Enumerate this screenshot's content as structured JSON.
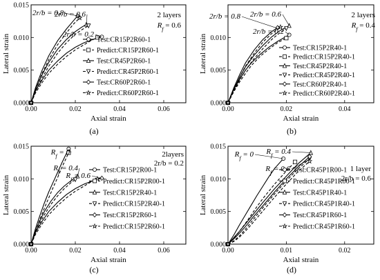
{
  "figure_width": 550,
  "figure_height": 406,
  "chart_data": [
    {
      "type": "line",
      "panel_label": "(a)",
      "xlabel": "Axial strain",
      "ylabel": "Lateral strain",
      "xlim": [
        0,
        0.07
      ],
      "ylim": [
        0,
        0.015
      ],
      "x_ticks": [
        "0.00",
        "0.02",
        "0.04",
        "0.06"
      ],
      "y_ticks": [
        "0.000",
        "0.005",
        "0.010",
        "0.015"
      ],
      "grid": false,
      "legend_position": "bottom-right",
      "notes": [
        "2 layers",
        "R_f = 0.6"
      ],
      "annotations": [
        {
          "text": "2r/b = 0.8",
          "x": 0.021,
          "y": 0.0133
        },
        {
          "text": "2r/b = 0.6",
          "x": 0.025,
          "y": 0.0118
        },
        {
          "text": "2r/b = 0.2",
          "x": 0.032,
          "y": 0.0101
        }
      ],
      "series": [
        {
          "name": "Test:CR15P2R60-1",
          "style": "solid",
          "marker": "circle",
          "x": [
            0,
            0.002,
            0.005,
            0.008,
            0.012,
            0.016,
            0.02,
            0.024,
            0.028,
            0.032
          ],
          "y": [
            0,
            0.0018,
            0.0035,
            0.005,
            0.0064,
            0.0076,
            0.0085,
            0.0092,
            0.0097,
            0.0101
          ]
        },
        {
          "name": "Predict:CR15P2R60-1",
          "style": "dashed",
          "marker": "square",
          "x": [
            0,
            0.002,
            0.005,
            0.008,
            0.012,
            0.016,
            0.02,
            0.024,
            0.027,
            0.03
          ],
          "y": [
            0,
            0.0015,
            0.0031,
            0.0045,
            0.0059,
            0.0071,
            0.0081,
            0.0089,
            0.0095,
            0.01
          ]
        },
        {
          "name": "Test:CR45P2R60-1",
          "style": "solid",
          "marker": "triangle-up",
          "x": [
            0,
            0.002,
            0.005,
            0.008,
            0.012,
            0.016,
            0.02,
            0.023,
            0.025
          ],
          "y": [
            0,
            0.002,
            0.0043,
            0.0062,
            0.0082,
            0.0097,
            0.0109,
            0.0116,
            0.012
          ]
        },
        {
          "name": "Predict:CR45P2R60-1",
          "style": "dashed",
          "marker": "triangle-down",
          "x": [
            0,
            0.002,
            0.005,
            0.008,
            0.012,
            0.016,
            0.02,
            0.023,
            0.026
          ],
          "y": [
            0,
            0.0017,
            0.0038,
            0.0056,
            0.0076,
            0.0092,
            0.0105,
            0.0112,
            0.0118
          ]
        },
        {
          "name": "Test:CR60P2R60-1",
          "style": "solid",
          "marker": "diamond",
          "x": [
            0,
            0.002,
            0.005,
            0.008,
            0.012,
            0.016,
            0.019,
            0.021
          ],
          "y": [
            0,
            0.0023,
            0.005,
            0.0072,
            0.0095,
            0.0113,
            0.0125,
            0.0133
          ]
        },
        {
          "name": "Predict:CR60P2R60-1",
          "style": "dashed",
          "marker": "star",
          "x": [
            0,
            0.002,
            0.005,
            0.008,
            0.012,
            0.016,
            0.019,
            0.022
          ],
          "y": [
            0,
            0.002,
            0.0045,
            0.0066,
            0.0089,
            0.0107,
            0.012,
            0.013
          ]
        }
      ]
    },
    {
      "type": "line",
      "panel_label": "(b)",
      "xlabel": "Axial strain",
      "ylabel": "Lateral strain",
      "xlim": [
        0,
        0.05
      ],
      "ylim": [
        0,
        0.015
      ],
      "x_ticks": [
        "0.00",
        "0.02",
        "0.04"
      ],
      "y_ticks": [
        "0.000",
        "0.005",
        "0.010"
      ],
      "grid": false,
      "legend_position": "bottom-right",
      "notes": [
        "2 layers",
        "R_f = 0.4"
      ],
      "annotations": [
        {
          "text": "2r/b = 0.8",
          "x": 0.017,
          "y": 0.0114
        },
        {
          "text": "2r/b = 0.6",
          "x": 0.021,
          "y": 0.0118
        },
        {
          "text": "2r/b = 0.2",
          "x": 0.021,
          "y": 0.0104
        }
      ],
      "series": [
        {
          "name": "Test:CR15P2R40-1",
          "style": "solid",
          "marker": "circle",
          "x": [
            0,
            0.002,
            0.004,
            0.006,
            0.008,
            0.011,
            0.014,
            0.017,
            0.019,
            0.021
          ],
          "y": [
            0,
            0.002,
            0.0036,
            0.005,
            0.0061,
            0.0074,
            0.0085,
            0.0094,
            0.0099,
            0.0104
          ]
        },
        {
          "name": "Predict:CR15P2R40-1",
          "style": "dashed",
          "marker": "square",
          "x": [
            0,
            0.002,
            0.004,
            0.006,
            0.008,
            0.011,
            0.014,
            0.017,
            0.02
          ],
          "y": [
            0,
            0.0017,
            0.0032,
            0.0045,
            0.0057,
            0.0071,
            0.0082,
            0.0092,
            0.0099
          ]
        },
        {
          "name": "Test:CR45P2R40-1",
          "style": "solid",
          "marker": "triangle-up",
          "x": [
            0,
            0.002,
            0.004,
            0.006,
            0.009,
            0.012,
            0.015,
            0.018,
            0.021
          ],
          "y": [
            0,
            0.0021,
            0.0039,
            0.0055,
            0.0073,
            0.0088,
            0.0101,
            0.0111,
            0.0118
          ]
        },
        {
          "name": "Predict:CR45P2R40-1",
          "style": "dashed",
          "marker": "triangle-down",
          "x": [
            0,
            0.002,
            0.004,
            0.006,
            0.009,
            0.012,
            0.015,
            0.018,
            0.02
          ],
          "y": [
            0,
            0.0018,
            0.0035,
            0.005,
            0.0068,
            0.0083,
            0.0097,
            0.0108,
            0.0114
          ]
        },
        {
          "name": "Test:CR60P2R40-1",
          "style": "solid",
          "marker": "diamond",
          "x": [
            0,
            0.002,
            0.004,
            0.006,
            0.009,
            0.012,
            0.015,
            0.017
          ],
          "y": [
            0,
            0.0023,
            0.0043,
            0.0061,
            0.0081,
            0.0097,
            0.0109,
            0.0115
          ]
        },
        {
          "name": "Predict:CR60P2R40-1",
          "style": "dashed",
          "marker": "star",
          "x": [
            0,
            0.002,
            0.004,
            0.006,
            0.009,
            0.012,
            0.015,
            0.018
          ],
          "y": [
            0,
            0.002,
            0.0039,
            0.0056,
            0.0076,
            0.0093,
            0.0106,
            0.0116
          ]
        }
      ]
    },
    {
      "type": "line",
      "panel_label": "(c)",
      "xlabel": "Axial strain",
      "ylabel": "Lateral strain",
      "xlim": [
        0,
        0.07
      ],
      "ylim": [
        0,
        0.015
      ],
      "x_ticks": [
        "0.00",
        "0.02",
        "0.04",
        "0.06"
      ],
      "y_ticks": [
        "0.000",
        "0.005",
        "0.010",
        "0.015"
      ],
      "grid": false,
      "legend_position": "bottom-right",
      "notes": [
        "2layers",
        "2r/b = 0.2"
      ],
      "annotations": [
        {
          "text": "R_f = 0",
          "x": 0.017,
          "y": 0.0146
        },
        {
          "text": "R_f = 0.4",
          "x": 0.021,
          "y": 0.0103
        },
        {
          "text": "R_f = 0.6",
          "x": 0.032,
          "y": 0.0101
        }
      ],
      "series": [
        {
          "name": "Test:CR15P2R00-1",
          "style": "solid",
          "marker": "circle",
          "x": [
            0,
            0.002,
            0.004,
            0.006,
            0.008,
            0.01,
            0.012,
            0.014,
            0.017
          ],
          "y": [
            0,
            0.0024,
            0.0044,
            0.0063,
            0.008,
            0.0095,
            0.011,
            0.0125,
            0.0146
          ]
        },
        {
          "name": "Predict:CR15P2R00-1",
          "style": "dashed",
          "marker": "square",
          "x": [
            0,
            0.002,
            0.004,
            0.006,
            0.008,
            0.01,
            0.012,
            0.014,
            0.017
          ],
          "y": [
            0,
            0.002,
            0.0038,
            0.0055,
            0.0071,
            0.0087,
            0.0102,
            0.0118,
            0.014
          ]
        },
        {
          "name": "Test:CR15P2R40-1",
          "style": "solid",
          "marker": "triangle-up",
          "x": [
            0,
            0.002,
            0.004,
            0.006,
            0.009,
            0.012,
            0.015,
            0.018,
            0.021
          ],
          "y": [
            0,
            0.002,
            0.0036,
            0.005,
            0.0066,
            0.0079,
            0.0089,
            0.0097,
            0.0104
          ]
        },
        {
          "name": "Predict:CR15P2R40-1",
          "style": "dashed",
          "marker": "triangle-down",
          "x": [
            0,
            0.002,
            0.004,
            0.006,
            0.009,
            0.012,
            0.015,
            0.018,
            0.02
          ],
          "y": [
            0,
            0.0017,
            0.0032,
            0.0045,
            0.0061,
            0.0074,
            0.0085,
            0.0094,
            0.0099
          ]
        },
        {
          "name": "Test:CR15P2R60-1",
          "style": "solid",
          "marker": "diamond",
          "x": [
            0,
            0.002,
            0.005,
            0.008,
            0.012,
            0.016,
            0.02,
            0.024,
            0.028,
            0.032
          ],
          "y": [
            0,
            0.0018,
            0.0035,
            0.005,
            0.0064,
            0.0076,
            0.0085,
            0.0092,
            0.0097,
            0.0101
          ]
        },
        {
          "name": "Predict:CR15P2R60-1",
          "style": "dashed",
          "marker": "star",
          "x": [
            0,
            0.002,
            0.005,
            0.008,
            0.012,
            0.016,
            0.02,
            0.024,
            0.027,
            0.03
          ],
          "y": [
            0,
            0.0015,
            0.0031,
            0.0045,
            0.0059,
            0.0071,
            0.0081,
            0.0089,
            0.0095,
            0.01
          ]
        }
      ]
    },
    {
      "type": "line",
      "panel_label": "(d)",
      "xlabel": "Axial strain",
      "ylabel": "Lateral strain",
      "xlim": [
        0,
        0.025
      ],
      "ylim": [
        0,
        0.015
      ],
      "x_ticks": [
        "0.00",
        "0.01",
        "0.02"
      ],
      "y_ticks": [
        "0.000",
        "0.005",
        "0.010",
        "0.015"
      ],
      "grid": false,
      "legend_position": "bottom-right",
      "notes": [
        "1 layer",
        "2r/b = 0.6"
      ],
      "annotations": [
        {
          "text": "R_f = 0",
          "x": 0.0095,
          "y": 0.0131
        },
        {
          "text": "R_f = 0.4",
          "x": 0.0142,
          "y": 0.014
        },
        {
          "text": "R_f = 0.6",
          "x": 0.014,
          "y": 0.013
        }
      ],
      "series": [
        {
          "name": "Test:CR45P1R00-1",
          "style": "solid",
          "marker": "circle",
          "x": [
            0,
            0.001,
            0.002,
            0.003,
            0.004,
            0.005,
            0.006,
            0.007,
            0.008,
            0.0095
          ],
          "y": [
            0,
            0.0014,
            0.003,
            0.0045,
            0.006,
            0.0075,
            0.0089,
            0.0103,
            0.0116,
            0.0131
          ]
        },
        {
          "name": "Predict:CR45P1R00-1",
          "style": "dashed",
          "marker": "square",
          "x": [
            0,
            0.001,
            0.002,
            0.003,
            0.004,
            0.005,
            0.006,
            0.008,
            0.01,
            0.0115
          ],
          "y": [
            0,
            0.0009,
            0.002,
            0.0032,
            0.0045,
            0.0058,
            0.007,
            0.0092,
            0.0112,
            0.0126
          ]
        },
        {
          "name": "Test:CR45P1R40-1",
          "style": "solid",
          "marker": "triangle-up",
          "x": [
            0,
            0.001,
            0.002,
            0.003,
            0.004,
            0.006,
            0.008,
            0.01,
            0.012,
            0.0142
          ],
          "y": [
            0,
            0.001,
            0.002,
            0.0031,
            0.0042,
            0.0064,
            0.0085,
            0.0104,
            0.0123,
            0.014
          ]
        },
        {
          "name": "Predict:CR45P1R40-1",
          "style": "dashed",
          "marker": "triangle-down",
          "x": [
            0,
            0.001,
            0.002,
            0.003,
            0.004,
            0.006,
            0.008,
            0.01,
            0.012,
            0.014
          ],
          "y": [
            0,
            0.0005,
            0.0013,
            0.0023,
            0.0034,
            0.0056,
            0.0077,
            0.0097,
            0.0115,
            0.0131
          ]
        },
        {
          "name": "Test:CR45P1R60-1",
          "style": "solid",
          "marker": "diamond",
          "x": [
            0,
            0.001,
            0.002,
            0.003,
            0.004,
            0.006,
            0.008,
            0.01,
            0.012,
            0.014
          ],
          "y": [
            0,
            0.0008,
            0.0017,
            0.0027,
            0.0038,
            0.0059,
            0.008,
            0.01,
            0.0118,
            0.0134
          ]
        },
        {
          "name": "Predict:CR45P1R60-1",
          "style": "dashed",
          "marker": "star",
          "x": [
            0,
            0.001,
            0.002,
            0.003,
            0.004,
            0.006,
            0.008,
            0.01,
            0.012,
            0.014
          ],
          "y": [
            0,
            0.0004,
            0.0011,
            0.002,
            0.003,
            0.0051,
            0.0072,
            0.0092,
            0.0111,
            0.0127
          ]
        }
      ]
    }
  ]
}
